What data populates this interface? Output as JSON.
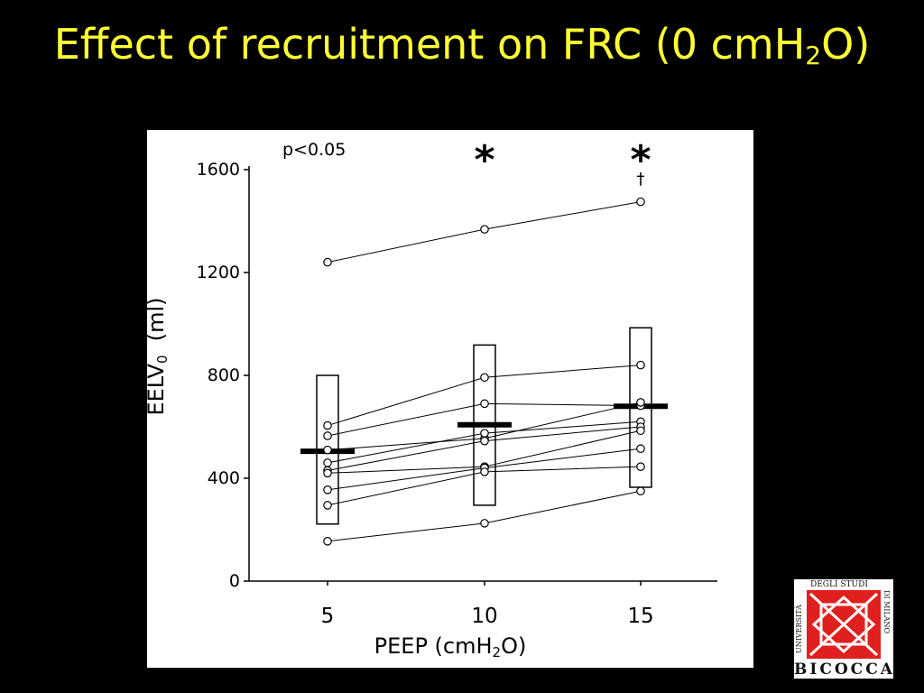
{
  "slide": {
    "title_main": "Effect of recruitment on FRC (0 cmH",
    "title_sub": "2",
    "title_end": "O)"
  },
  "logo": {
    "name": "BICOCCA",
    "top_text": "DEGLI STUDI",
    "left_text": "UNIVERSITÀ",
    "right_text": "DI MILANO",
    "color": "#e0201e"
  },
  "chart_data": {
    "type": "scatter",
    "x": [
      5,
      10,
      15
    ],
    "xlabel_main": "PEEP (cmH",
    "xlabel_sub": "2",
    "xlabel_end": "O)",
    "ylabel_main": "EELV",
    "ylabel_sub": "0",
    "ylabel_end": "  (ml)",
    "ylim": [
      0,
      1600
    ],
    "yticks": [
      0,
      400,
      800,
      1200,
      1600
    ],
    "xticks": [
      "5",
      "10",
      "15"
    ],
    "grid": false,
    "annotation_p": "p<0.05",
    "significance": [
      "",
      "*",
      "*"
    ],
    "dagger": [
      "",
      "",
      "†"
    ],
    "means": [
      505,
      608,
      680
    ],
    "ranges": [
      [
        222,
        800
      ],
      [
        295,
        918
      ],
      [
        365,
        985
      ]
    ],
    "subjects": [
      [
        1240,
        1368,
        1475
      ],
      [
        605,
        792,
        840
      ],
      [
        565,
        690,
        682
      ],
      [
        510,
        555,
        695
      ],
      [
        460,
        575,
        620
      ],
      [
        430,
        545,
        600
      ],
      [
        420,
        445,
        585
      ],
      [
        355,
        440,
        515
      ],
      [
        295,
        425,
        445
      ],
      [
        155,
        225,
        350
      ]
    ]
  }
}
